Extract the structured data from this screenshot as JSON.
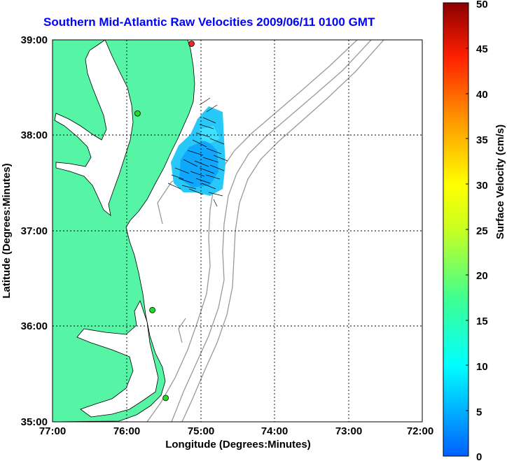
{
  "title": "Southern Mid-Atlantic Raw Velocities 2009/06/11 0100 GMT",
  "x_axis": {
    "label": "Longitude (Degrees:Minutes)",
    "ticks": [
      "77:00",
      "76:00",
      "75:00",
      "74:00",
      "73:00",
      "72:00"
    ]
  },
  "y_axis": {
    "label": "Latitude (Degrees:Minutes)",
    "ticks": [
      "39:00",
      "38:00",
      "37:00",
      "36:00",
      "35:00"
    ]
  },
  "colorbar": {
    "label": "Surface Velocity (cm/s)",
    "ticks": [
      "50",
      "45",
      "40",
      "35",
      "30",
      "25",
      "20",
      "15",
      "10",
      "5",
      "0"
    ],
    "range": [
      0,
      50
    ]
  },
  "colors": {
    "land": "#55f5a5",
    "water": "#ffffff",
    "bathymetry": "#999999",
    "title": "#0000ff",
    "grid": "#000000"
  },
  "map": {
    "lon_range": [
      -77,
      -72
    ],
    "lat_range": [
      35,
      39
    ],
    "stations": [
      {
        "lon": -75.12,
        "lat": 38.96,
        "color": "#ff2020"
      },
      {
        "lon": -75.85,
        "lat": 38.23,
        "color": "#22dd22"
      },
      {
        "lon": -75.65,
        "lat": 36.17,
        "color": "#22dd22"
      },
      {
        "lon": -75.47,
        "lat": 35.25,
        "color": "#22dd22"
      }
    ]
  }
}
